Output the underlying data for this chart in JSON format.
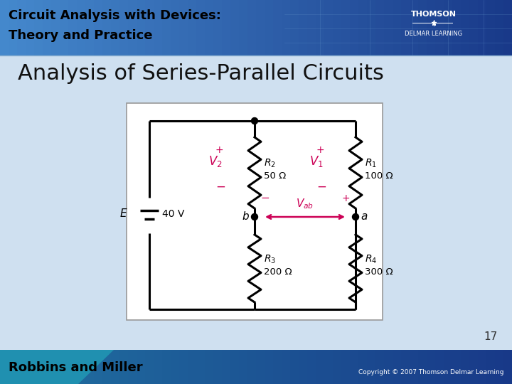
{
  "title": "Analysis of Series-Parallel Circuits",
  "page_number": "17",
  "header_title_line1": "Circuit Analysis with Devices:",
  "header_title_line2": "Theory and Practice",
  "slide_bg_color": "#cfe0f0",
  "footer_text": "Robbins and Miller",
  "footer_right": "Copyright © 2007 Thomson Delmar Learning",
  "thomson_text": "THOMSON",
  "delmar_text": "DELMAR LEARNING",
  "voltage_color": "#cc0055",
  "label_color": "#000000",
  "E_value": "40 V",
  "R1_label": "R_1",
  "R1_value": "100 Ω",
  "R2_label": "R_2",
  "R2_value": "50 Ω",
  "R3_label": "R_3",
  "R3_value": "200 Ω",
  "R4_label": "R_4",
  "R4_value": "300 Ω",
  "header_left_color": "#2060c0",
  "header_right_color": "#1a3a8a",
  "footer_left_color": "#1a6090",
  "footer_right_color": "#1a3a8a"
}
